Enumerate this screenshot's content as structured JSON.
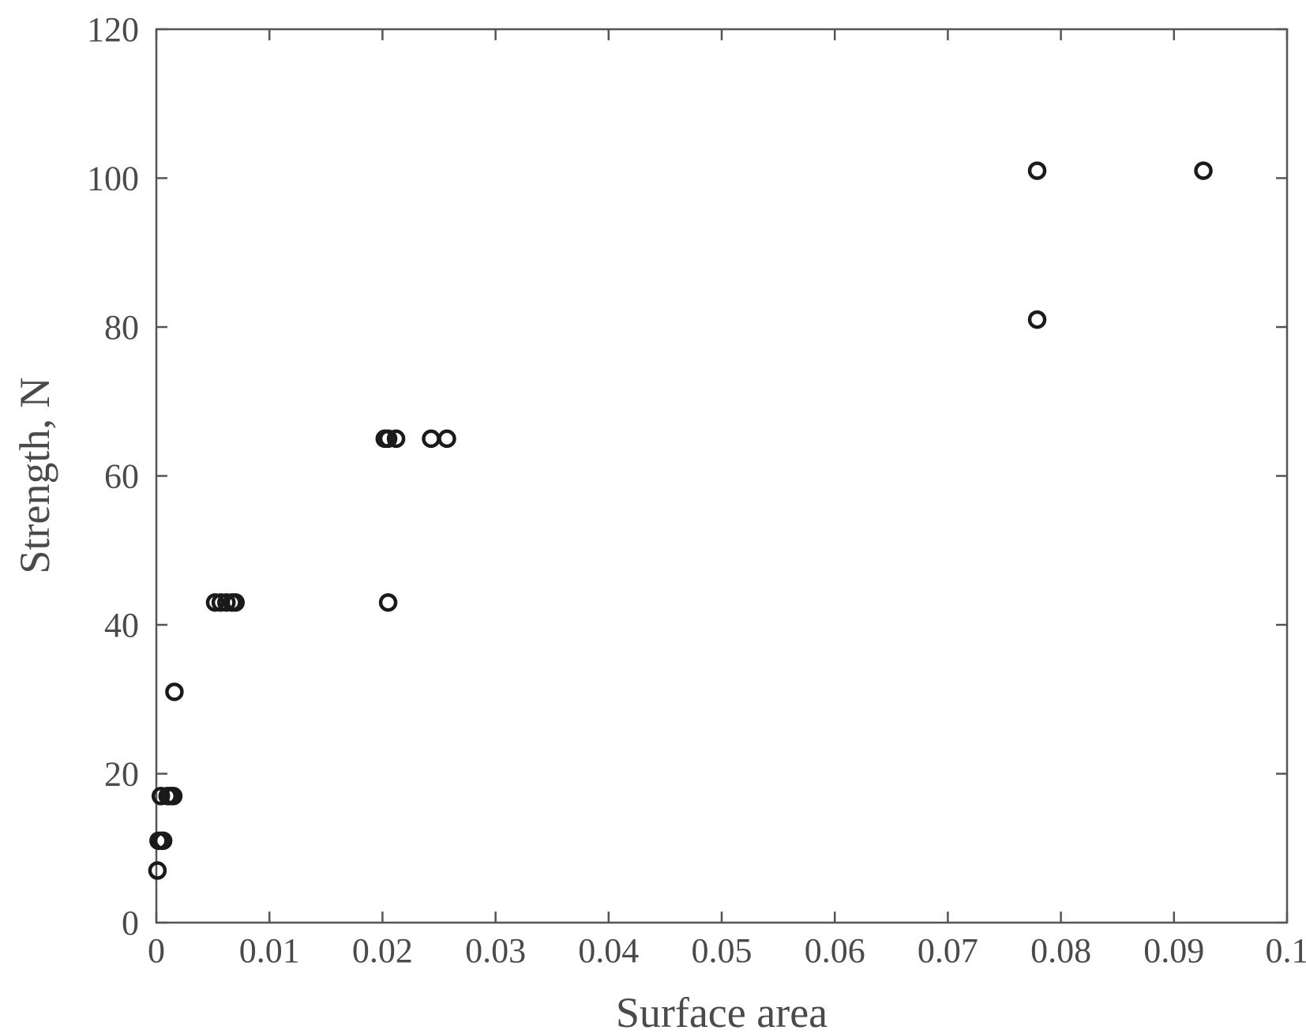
{
  "chart_data": {
    "type": "scatter",
    "xlabel": "Surface area",
    "ylabel": "Strength, N",
    "xlim": [
      0,
      0.1
    ],
    "ylim": [
      0,
      120
    ],
    "grid": false,
    "x_ticks": [
      0,
      0.01,
      0.02,
      0.03,
      0.04,
      0.05,
      0.06,
      0.07,
      0.08,
      0.09,
      0.1
    ],
    "x_tick_labels": [
      "0",
      "0.01",
      "0.02",
      "0.03",
      "0.04",
      "0.05",
      "0.06",
      "0.07",
      "0.08",
      "0.09",
      "0.1"
    ],
    "y_ticks": [
      0,
      20,
      40,
      60,
      80,
      100,
      120
    ],
    "y_tick_labels": [
      "0",
      "20",
      "40",
      "60",
      "80",
      "100",
      "120"
    ],
    "marker": "open-circle",
    "marker_color": "#1a1a1a",
    "series": [
      {
        "x": [
          0.0001,
          0.0002,
          0.0005,
          0.0006,
          0.0004,
          0.001,
          0.0013,
          0.0015,
          0.0016,
          0.0052,
          0.0057,
          0.0062,
          0.0067,
          0.007,
          0.0202,
          0.0205,
          0.0212,
          0.0243,
          0.0257,
          0.0205,
          0.0779,
          0.0779,
          0.0926
        ],
        "y": [
          7,
          11,
          11,
          11,
          17,
          17,
          17,
          17,
          31,
          43,
          43,
          43,
          43,
          43,
          65,
          65,
          65,
          65,
          65,
          43,
          101,
          81,
          101
        ]
      }
    ]
  }
}
